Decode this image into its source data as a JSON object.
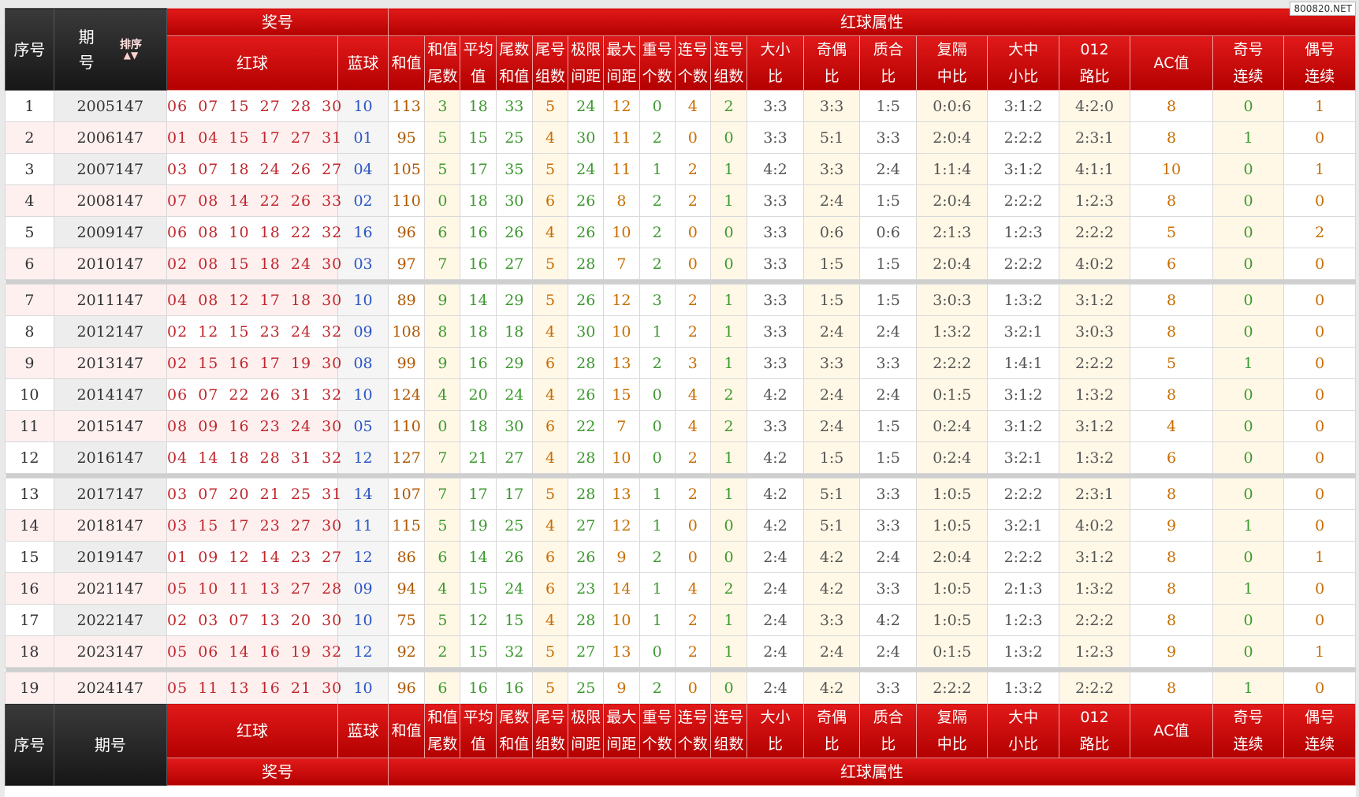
{
  "watermark": "800820.NET",
  "header": {
    "seq": "序号",
    "period_top": "期",
    "period_bottom": "号",
    "period": "期号",
    "sort_label": "排序",
    "prize": "奖号",
    "attrs": "红球属性",
    "red": "红球",
    "blue": "蓝球",
    "hezhi": "和值",
    "cols": [
      [
        "和值",
        "尾数"
      ],
      [
        "平均",
        "值"
      ],
      [
        "尾数",
        "和值"
      ],
      [
        "尾号",
        "组数"
      ],
      [
        "极限",
        "间距"
      ],
      [
        "最大",
        "间距"
      ],
      [
        "重号",
        "个数"
      ],
      [
        "连号",
        "个数"
      ],
      [
        "连号",
        "组数"
      ],
      [
        "大小",
        "比"
      ],
      [
        "奇偶",
        "比"
      ],
      [
        "质合",
        "比"
      ],
      [
        "复隔",
        "中比"
      ],
      [
        "大中",
        "小比"
      ],
      [
        "012",
        "路比"
      ],
      [
        "AC值",
        ""
      ],
      [
        "奇号",
        "连续"
      ],
      [
        "偶号",
        "连续"
      ]
    ]
  },
  "rows": [
    {
      "no": "1",
      "period": "2005147",
      "red": "06 07 15 27 28 30",
      "blue": "10",
      "v": [
        "113",
        "3",
        "18",
        "33",
        "5",
        "24",
        "12",
        "0",
        "4",
        "2",
        "3:3",
        "3:3",
        "1:5",
        "0:0:6",
        "3:1:2",
        "4:2:0",
        "8",
        "0",
        "1"
      ]
    },
    {
      "no": "2",
      "period": "2006147",
      "red": "01 04 15 17 27 31",
      "blue": "01",
      "v": [
        "95",
        "5",
        "15",
        "25",
        "4",
        "30",
        "11",
        "2",
        "0",
        "0",
        "3:3",
        "5:1",
        "3:3",
        "2:0:4",
        "2:2:2",
        "2:3:1",
        "8",
        "1",
        "0"
      ]
    },
    {
      "no": "3",
      "period": "2007147",
      "red": "03 07 18 24 26 27",
      "blue": "04",
      "v": [
        "105",
        "5",
        "17",
        "35",
        "5",
        "24",
        "11",
        "1",
        "2",
        "1",
        "4:2",
        "3:3",
        "2:4",
        "1:1:4",
        "3:1:2",
        "4:1:1",
        "10",
        "0",
        "1"
      ]
    },
    {
      "no": "4",
      "period": "2008147",
      "red": "07 08 14 22 26 33",
      "blue": "02",
      "v": [
        "110",
        "0",
        "18",
        "30",
        "6",
        "26",
        "8",
        "2",
        "2",
        "1",
        "3:3",
        "2:4",
        "1:5",
        "2:0:4",
        "2:2:2",
        "1:2:3",
        "8",
        "0",
        "0"
      ]
    },
    {
      "no": "5",
      "period": "2009147",
      "red": "06 08 10 18 22 32",
      "blue": "16",
      "v": [
        "96",
        "6",
        "16",
        "26",
        "4",
        "26",
        "10",
        "2",
        "0",
        "0",
        "3:3",
        "0:6",
        "0:6",
        "2:1:3",
        "1:2:3",
        "2:2:2",
        "5",
        "0",
        "2"
      ]
    },
    {
      "no": "6",
      "period": "2010147",
      "red": "02 08 15 18 24 30",
      "blue": "03",
      "v": [
        "97",
        "7",
        "16",
        "27",
        "5",
        "28",
        "7",
        "2",
        "0",
        "0",
        "3:3",
        "1:5",
        "1:5",
        "2:0:4",
        "2:2:2",
        "4:0:2",
        "6",
        "0",
        "0"
      ]
    },
    {
      "no": "7",
      "period": "2011147",
      "red": "04 08 12 17 18 30",
      "blue": "10",
      "v": [
        "89",
        "9",
        "14",
        "29",
        "5",
        "26",
        "12",
        "3",
        "2",
        "1",
        "3:3",
        "1:5",
        "1:5",
        "3:0:3",
        "1:3:2",
        "3:1:2",
        "8",
        "0",
        "0"
      ]
    },
    {
      "no": "8",
      "period": "2012147",
      "red": "02 12 15 23 24 32",
      "blue": "09",
      "v": [
        "108",
        "8",
        "18",
        "18",
        "4",
        "30",
        "10",
        "1",
        "2",
        "1",
        "3:3",
        "2:4",
        "2:4",
        "1:3:2",
        "3:2:1",
        "3:0:3",
        "8",
        "0",
        "0"
      ]
    },
    {
      "no": "9",
      "period": "2013147",
      "red": "02 15 16 17 19 30",
      "blue": "08",
      "v": [
        "99",
        "9",
        "16",
        "29",
        "6",
        "28",
        "13",
        "2",
        "3",
        "1",
        "3:3",
        "3:3",
        "3:3",
        "2:2:2",
        "1:4:1",
        "2:2:2",
        "5",
        "1",
        "0"
      ]
    },
    {
      "no": "10",
      "period": "2014147",
      "red": "06 07 22 26 31 32",
      "blue": "10",
      "v": [
        "124",
        "4",
        "20",
        "24",
        "4",
        "26",
        "15",
        "0",
        "4",
        "2",
        "4:2",
        "2:4",
        "2:4",
        "0:1:5",
        "3:1:2",
        "1:3:2",
        "8",
        "0",
        "0"
      ]
    },
    {
      "no": "11",
      "period": "2015147",
      "red": "08 09 16 23 24 30",
      "blue": "05",
      "v": [
        "110",
        "0",
        "18",
        "30",
        "6",
        "22",
        "7",
        "0",
        "4",
        "2",
        "3:3",
        "2:4",
        "1:5",
        "0:2:4",
        "3:1:2",
        "3:1:2",
        "4",
        "0",
        "0"
      ]
    },
    {
      "no": "12",
      "period": "2016147",
      "red": "04 14 18 28 31 32",
      "blue": "12",
      "v": [
        "127",
        "7",
        "21",
        "27",
        "4",
        "28",
        "10",
        "0",
        "2",
        "1",
        "4:2",
        "1:5",
        "1:5",
        "0:2:4",
        "3:2:1",
        "1:3:2",
        "6",
        "0",
        "0"
      ]
    },
    {
      "no": "13",
      "period": "2017147",
      "red": "03 07 20 21 25 31",
      "blue": "14",
      "v": [
        "107",
        "7",
        "17",
        "17",
        "5",
        "28",
        "13",
        "1",
        "2",
        "1",
        "4:2",
        "5:1",
        "3:3",
        "1:0:5",
        "2:2:2",
        "2:3:1",
        "8",
        "0",
        "0"
      ]
    },
    {
      "no": "14",
      "period": "2018147",
      "red": "03 15 17 23 27 30",
      "blue": "11",
      "v": [
        "115",
        "5",
        "19",
        "25",
        "4",
        "27",
        "12",
        "1",
        "0",
        "0",
        "4:2",
        "5:1",
        "3:3",
        "1:0:5",
        "3:2:1",
        "4:0:2",
        "9",
        "1",
        "0"
      ]
    },
    {
      "no": "15",
      "period": "2019147",
      "red": "01 09 12 14 23 27",
      "blue": "12",
      "v": [
        "86",
        "6",
        "14",
        "26",
        "6",
        "26",
        "9",
        "2",
        "0",
        "0",
        "2:4",
        "4:2",
        "2:4",
        "2:0:4",
        "2:2:2",
        "3:1:2",
        "8",
        "0",
        "1"
      ]
    },
    {
      "no": "16",
      "period": "2021147",
      "red": "05 10 11 13 27 28",
      "blue": "09",
      "v": [
        "94",
        "4",
        "15",
        "24",
        "6",
        "23",
        "14",
        "1",
        "4",
        "2",
        "2:4",
        "4:2",
        "3:3",
        "1:0:5",
        "2:1:3",
        "1:3:2",
        "8",
        "1",
        "0"
      ]
    },
    {
      "no": "17",
      "period": "2022147",
      "red": "02 03 07 13 20 30",
      "blue": "10",
      "v": [
        "75",
        "5",
        "12",
        "15",
        "4",
        "28",
        "10",
        "1",
        "2",
        "1",
        "2:4",
        "3:3",
        "4:2",
        "1:0:5",
        "1:2:3",
        "2:2:2",
        "8",
        "0",
        "0"
      ]
    },
    {
      "no": "18",
      "period": "2023147",
      "red": "05 06 14 16 19 32",
      "blue": "12",
      "v": [
        "92",
        "2",
        "15",
        "32",
        "5",
        "27",
        "13",
        "0",
        "2",
        "1",
        "2:4",
        "2:4",
        "2:4",
        "0:1:5",
        "1:3:2",
        "1:2:3",
        "9",
        "0",
        "1"
      ]
    },
    {
      "no": "19",
      "period": "2024147",
      "red": "05 11 13 16 21 30",
      "blue": "10",
      "v": [
        "96",
        "6",
        "16",
        "16",
        "5",
        "25",
        "9",
        "2",
        "0",
        "0",
        "2:4",
        "4:2",
        "3:3",
        "2:2:2",
        "1:3:2",
        "2:2:2",
        "8",
        "1",
        "0"
      ]
    }
  ]
}
